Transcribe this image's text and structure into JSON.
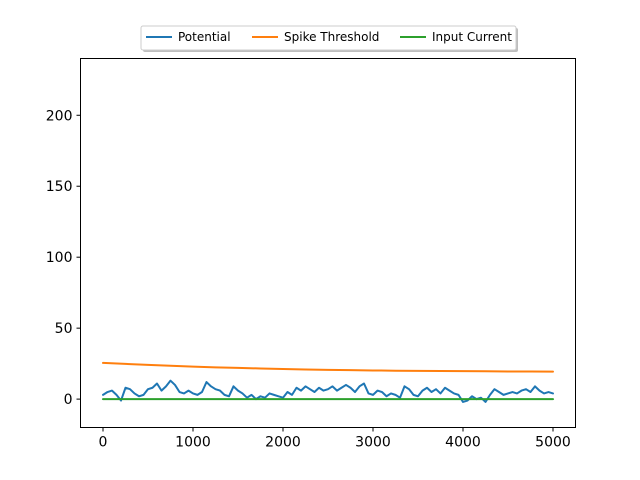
{
  "chart_data": {
    "type": "line",
    "title": "",
    "xlabel": "",
    "ylabel": "",
    "xlim": [
      -250,
      5250
    ],
    "ylim": [
      -20,
      240
    ],
    "xticks": [
      0,
      1000,
      2000,
      3000,
      4000,
      5000
    ],
    "yticks": [
      0,
      50,
      100,
      150,
      200
    ],
    "xtick_labels": [
      "0",
      "1000",
      "2000",
      "3000",
      "4000",
      "5000"
    ],
    "ytick_labels": [
      "0",
      "50",
      "100",
      "150",
      "200"
    ],
    "grid": false,
    "legend": {
      "placement": "top-center",
      "entries": [
        "Potential",
        "Spike Threshold",
        "Input Current"
      ]
    },
    "series": [
      {
        "name": "Potential",
        "color": "#1f77b4",
        "x": [
          0,
          50,
          100,
          150,
          200,
          250,
          300,
          350,
          400,
          450,
          500,
          550,
          600,
          650,
          700,
          750,
          800,
          850,
          900,
          950,
          1000,
          1050,
          1100,
          1150,
          1200,
          1250,
          1300,
          1350,
          1400,
          1450,
          1500,
          1550,
          1600,
          1650,
          1700,
          1750,
          1800,
          1850,
          1900,
          1950,
          2000,
          2050,
          2100,
          2150,
          2200,
          2250,
          2300,
          2350,
          2400,
          2450,
          2500,
          2550,
          2600,
          2650,
          2700,
          2750,
          2800,
          2850,
          2900,
          2950,
          3000,
          3050,
          3100,
          3150,
          3200,
          3250,
          3300,
          3350,
          3400,
          3450,
          3500,
          3550,
          3600,
          3650,
          3700,
          3750,
          3800,
          3850,
          3900,
          3950,
          4000,
          4050,
          4100,
          4150,
          4200,
          4250,
          4300,
          4350,
          4400,
          4450,
          4500,
          4550,
          4600,
          4650,
          4700,
          4750,
          4800,
          4850,
          4900,
          4950,
          5000
        ],
        "y": [
          3,
          5,
          6,
          3,
          -1,
          8,
          7,
          4,
          2,
          3,
          7,
          8,
          11,
          6,
          9,
          13,
          10,
          5,
          4,
          6,
          4,
          3,
          5,
          12,
          9,
          7,
          6,
          3,
          2,
          9,
          6,
          4,
          1,
          3,
          0,
          2,
          1,
          4,
          3,
          2,
          1,
          5,
          3,
          8,
          6,
          9,
          7,
          5,
          8,
          6,
          7,
          9,
          6,
          8,
          10,
          8,
          5,
          9,
          11,
          4,
          3,
          6,
          5,
          2,
          4,
          3,
          1,
          9,
          7,
          3,
          2,
          6,
          8,
          5,
          7,
          4,
          8,
          6,
          4,
          3,
          -2,
          -1,
          2,
          0,
          1,
          -2,
          3,
          7,
          5,
          3,
          4,
          5,
          4,
          6,
          7,
          5,
          9,
          6,
          4,
          5,
          4
        ]
      },
      {
        "name": "Spike Threshold",
        "color": "#ff7f0e",
        "x": [
          0,
          250,
          500,
          750,
          1000,
          1250,
          1500,
          1750,
          2000,
          2250,
          2500,
          2750,
          3000,
          3250,
          3500,
          3750,
          4000,
          4250,
          4500,
          4750,
          5000
        ],
        "y": [
          25.5,
          24.8,
          24.1,
          23.5,
          22.9,
          22.4,
          22.0,
          21.6,
          21.2,
          20.9,
          20.6,
          20.4,
          20.2,
          20.0,
          19.9,
          19.8,
          19.7,
          19.6,
          19.5,
          19.5,
          19.4
        ]
      },
      {
        "name": "Input Current",
        "color": "#2ca02c",
        "x": [
          0,
          500,
          1000,
          1500,
          2000,
          2500,
          3000,
          3500,
          4000,
          4500,
          5000
        ],
        "y": [
          0,
          0,
          0,
          0,
          0,
          0,
          0,
          0,
          0,
          0,
          0
        ]
      }
    ]
  }
}
